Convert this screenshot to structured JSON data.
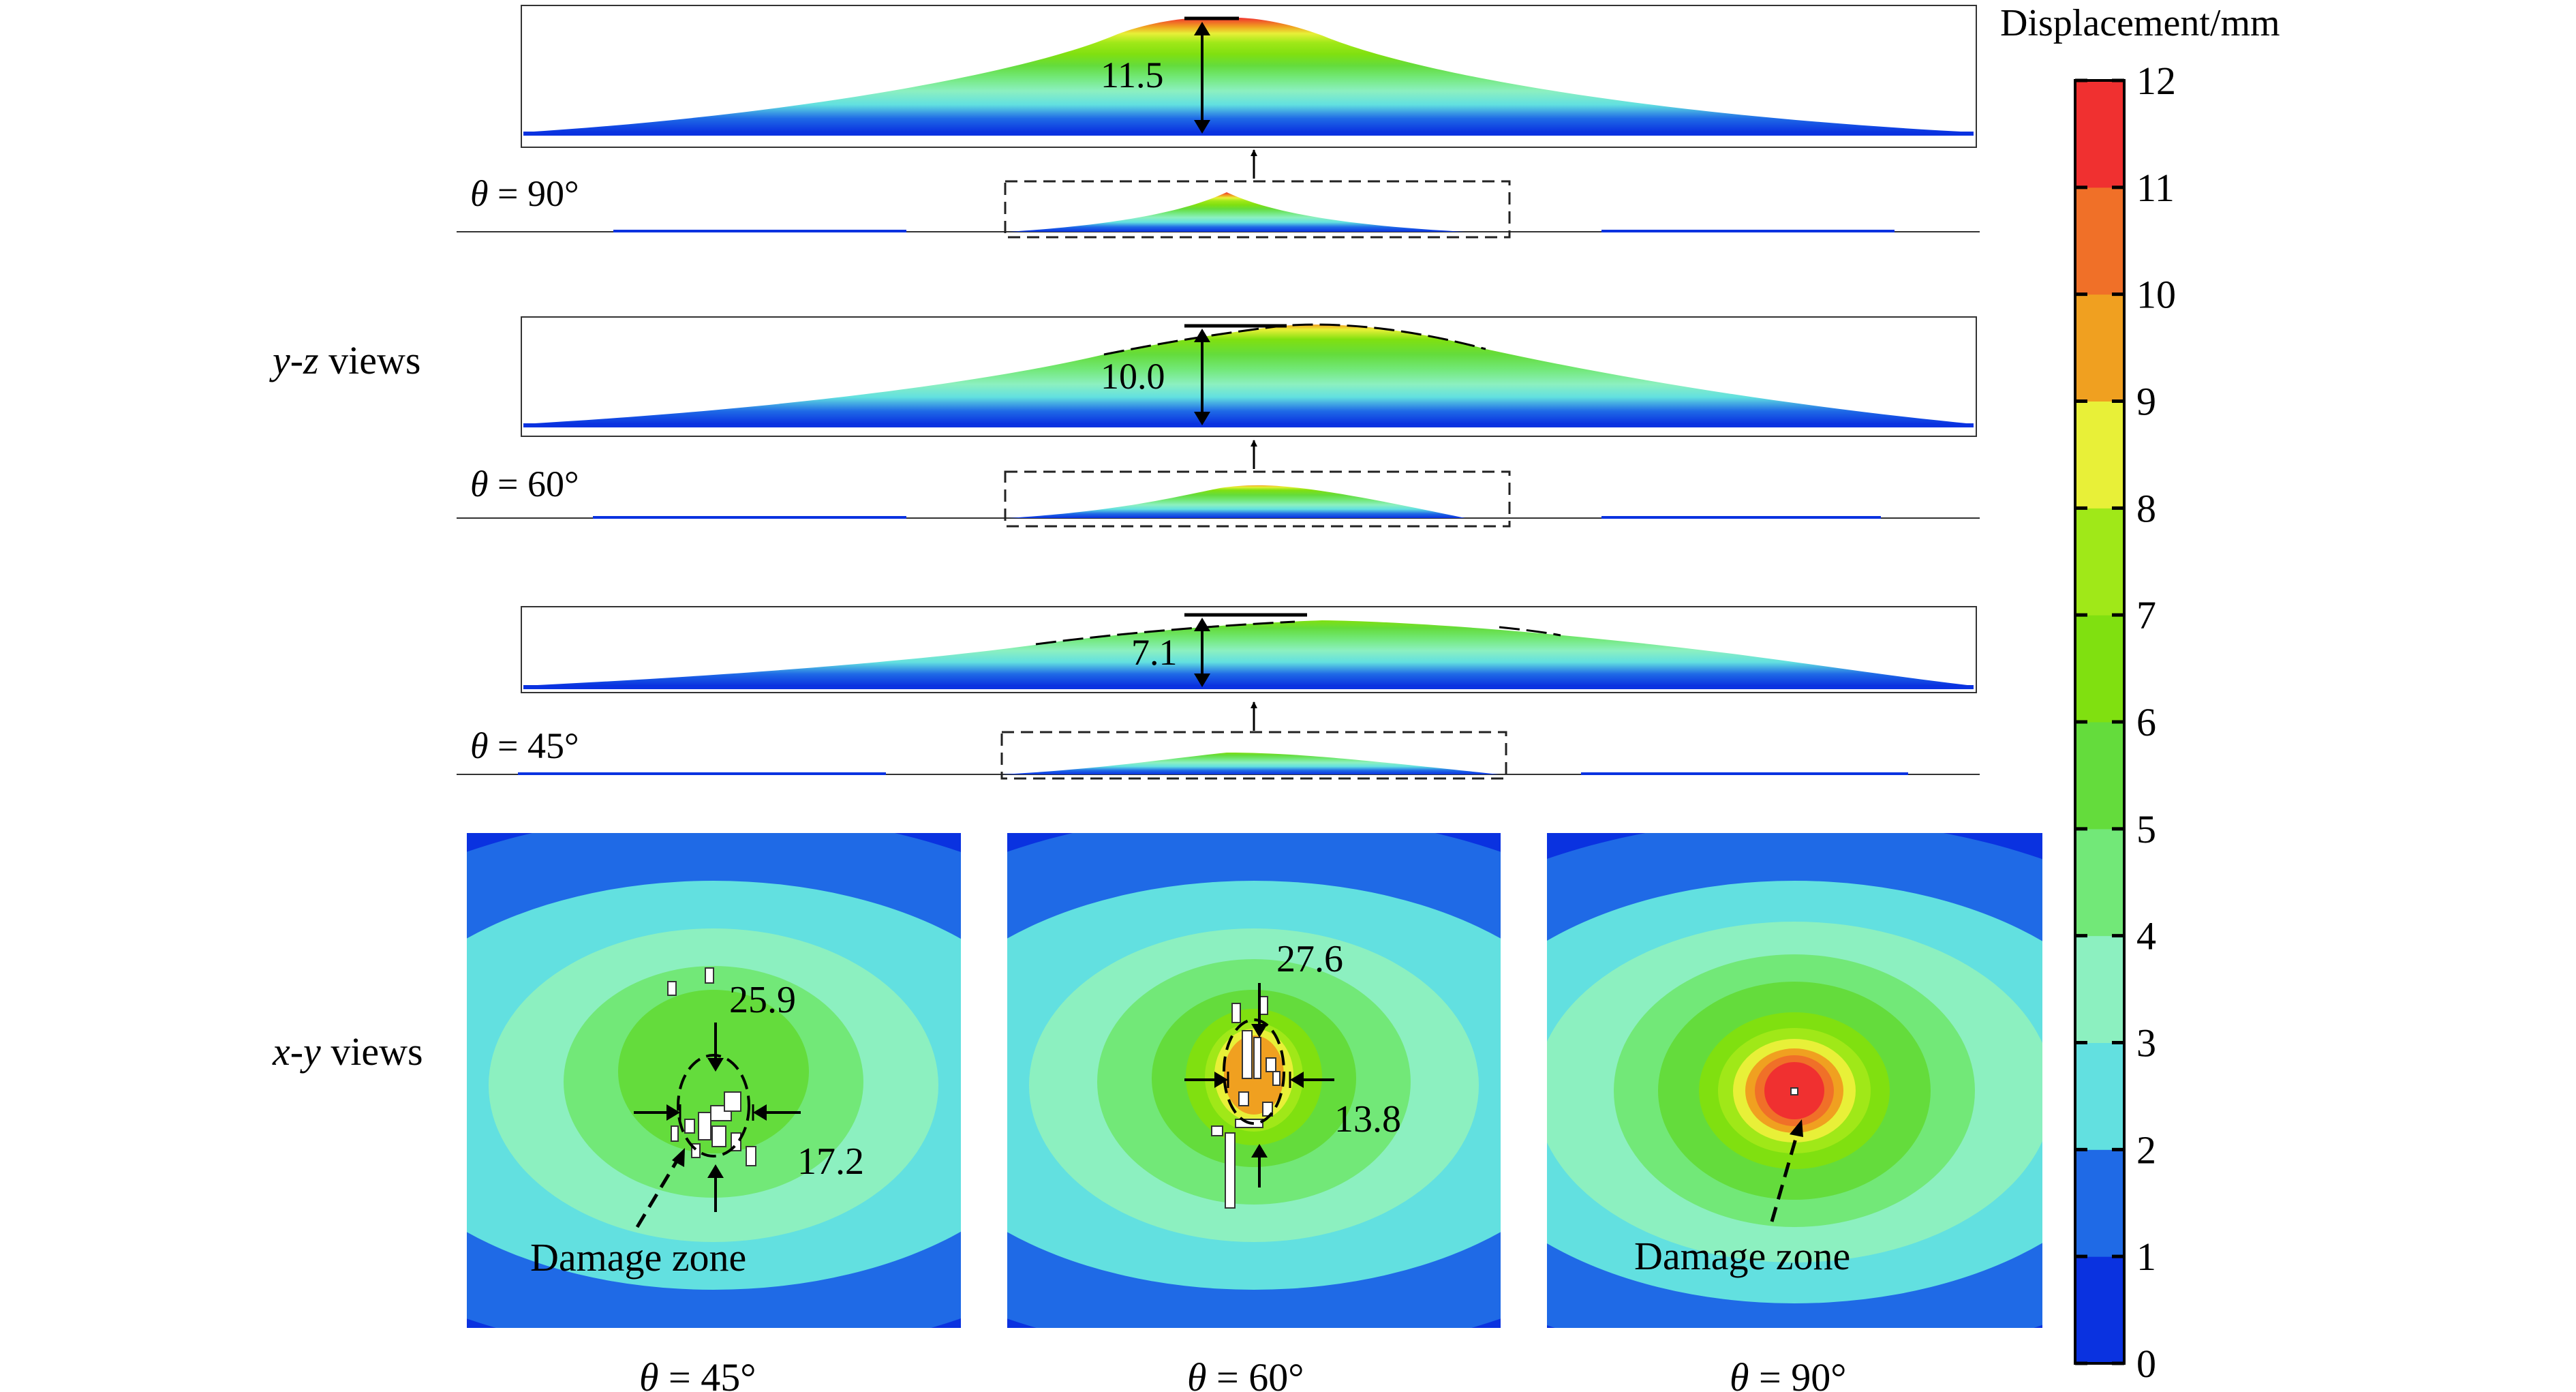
{
  "legend": {
    "title": "Displacement/mm",
    "ticks": [
      "0",
      "1",
      "2",
      "3",
      "4",
      "5",
      "6",
      "7",
      "8",
      "9",
      "10",
      "11",
      "12"
    ],
    "colors": [
      "#0a32e0",
      "#1f6ae6",
      "#62e0e0",
      "#8cf0c0",
      "#72e878",
      "#64dc3c",
      "#80e010",
      "#a0e818",
      "#e8f038",
      "#f0a020",
      "#f07028",
      "#f03030"
    ]
  },
  "side_labels": {
    "yz_prefix": "y-z",
    "yz_suffix": " views",
    "xy_prefix": "x-y",
    "xy_suffix": " views"
  },
  "yz_views": [
    {
      "theta_symbol": "θ",
      "theta_text": " = 90°",
      "peak_label": "11.5"
    },
    {
      "theta_symbol": "θ",
      "theta_text": " = 60°",
      "peak_label": "10.0"
    },
    {
      "theta_symbol": "θ",
      "theta_text": " = 45°",
      "peak_label": "7.1"
    }
  ],
  "xy_views": [
    {
      "theta_symbol": "θ",
      "theta_text": " = 45°",
      "dim_top": "25.9",
      "dim_side": "17.2",
      "damage_label": "Damage zone"
    },
    {
      "theta_symbol": "θ",
      "theta_text": " = 60°",
      "dim_top": "27.6",
      "dim_side": "13.8",
      "damage_label": ""
    },
    {
      "theta_symbol": "θ",
      "theta_text": " = 90°",
      "dim_top": "",
      "dim_side": "",
      "damage_label": "Damage zone"
    }
  ]
}
